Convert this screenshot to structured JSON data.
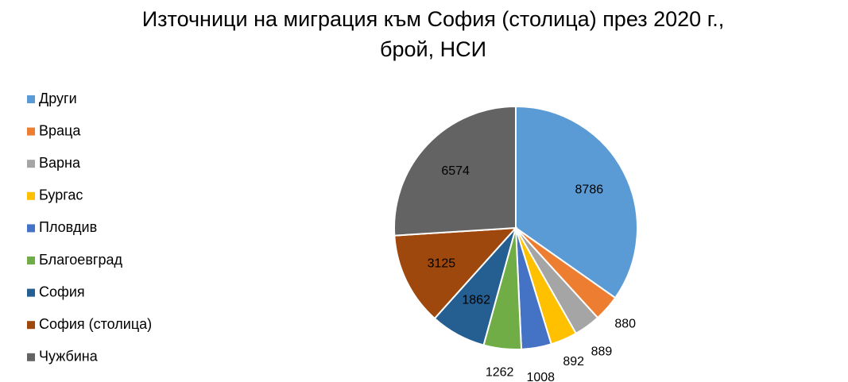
{
  "chart_data": {
    "type": "pie",
    "title": [
      "Източници на миграция към София (столица) през 2020 г.,",
      "брой, НСИ"
    ],
    "categories": [
      "Други",
      "Враца",
      "Варна",
      "Бургас",
      "Пловдив",
      "Благоевград",
      "София",
      "София (столица)",
      "Чужбина"
    ],
    "values": [
      8786,
      880,
      889,
      892,
      1008,
      1262,
      1862,
      3125,
      6574
    ],
    "colors": [
      "#5b9bd5",
      "#ed7d31",
      "#a5a5a5",
      "#ffc000",
      "#4472c4",
      "#70ad47",
      "#255e91",
      "#9e480e",
      "#636363"
    ],
    "legend": "left"
  }
}
